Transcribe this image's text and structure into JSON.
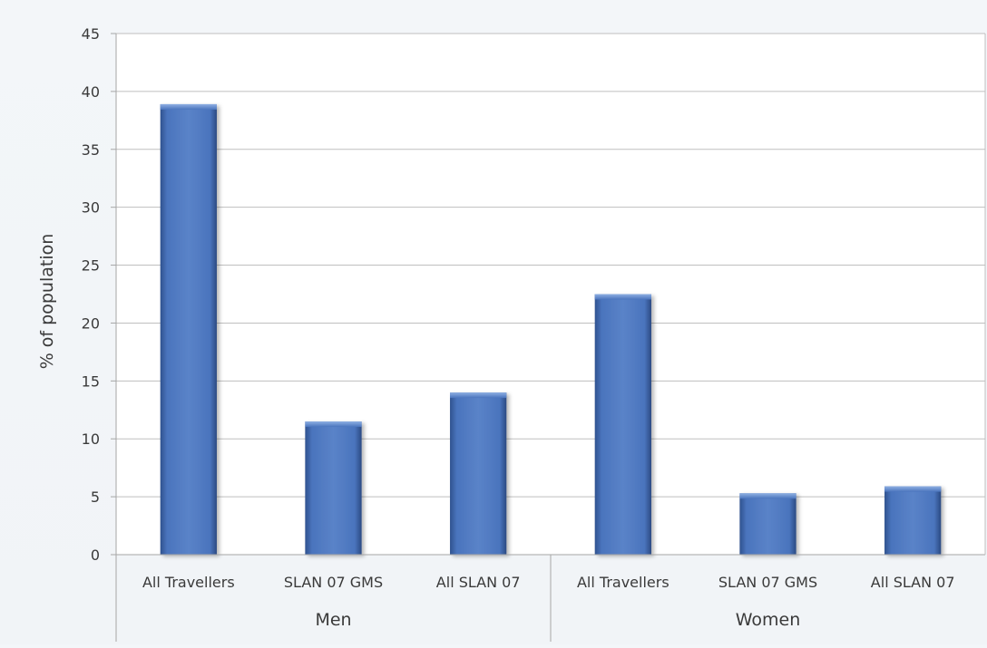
{
  "chart_data": {
    "type": "bar",
    "title": "",
    "xlabel": "",
    "ylabel": "% of population",
    "ylim": [
      0,
      45
    ],
    "yticks": [
      0,
      5,
      10,
      15,
      20,
      25,
      30,
      35,
      40,
      45
    ],
    "grid": true,
    "legend": "none",
    "groups": [
      {
        "label": "Men",
        "categories": [
          "All Travellers",
          "SLAN 07 GMS",
          "All SLAN 07"
        ],
        "values": [
          38.9,
          11.5,
          14.0
        ]
      },
      {
        "label": "Women",
        "categories": [
          "All Travellers",
          "SLAN 07 GMS",
          "All SLAN 07"
        ],
        "values": [
          22.5,
          5.3,
          5.9
        ]
      }
    ]
  },
  "colors": {
    "bar": "#4a72b8",
    "bar_dark": "#2e4f8f",
    "bar_light": "#7a9ad4",
    "grid": "#bfbfbf",
    "axis": "#a6a6a6",
    "plot_bg": "#ffffff"
  }
}
